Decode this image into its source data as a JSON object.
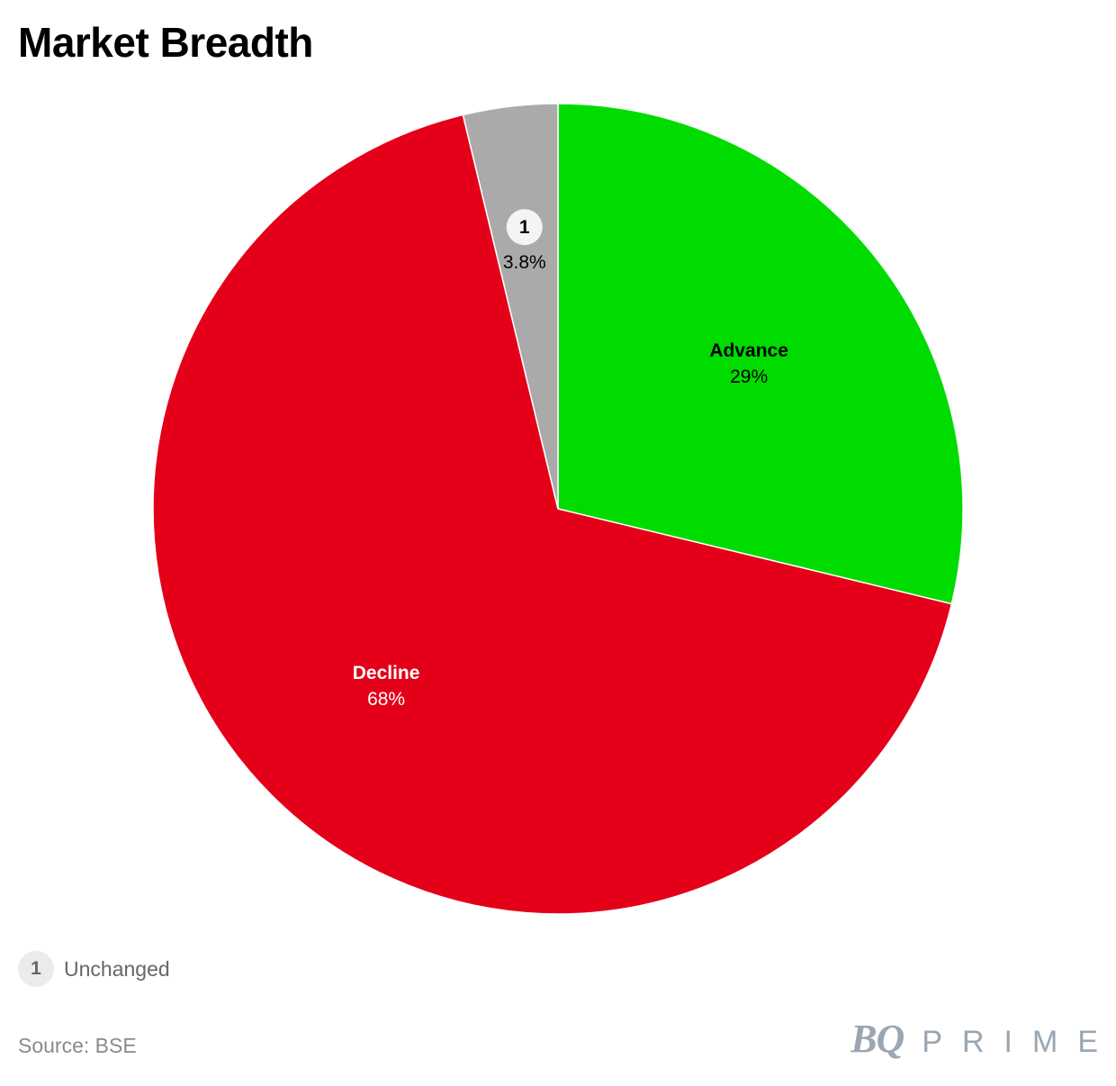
{
  "title": "Market Breadth",
  "chart_data": {
    "type": "pie",
    "title": "Market Breadth",
    "slices": [
      {
        "label": "Advance",
        "value": 29,
        "value_label": "29%",
        "color": "#00dc00",
        "label_color": "#000000"
      },
      {
        "label": "Decline",
        "value": 68,
        "value_label": "68%",
        "color": "#e50019",
        "label_color": "#ffffff"
      },
      {
        "label": "Unchanged",
        "value": 3.8,
        "value_label": "3.8%",
        "color": "#aaaaaa",
        "label_color": "#000000",
        "marker": "1"
      }
    ],
    "start": "12 o'clock",
    "direction": "clockwise"
  },
  "legend": {
    "marker": "1",
    "label": "Unchanged"
  },
  "source": "Source: BSE",
  "logo": {
    "bq": "BQ",
    "prime": "PRIME"
  }
}
